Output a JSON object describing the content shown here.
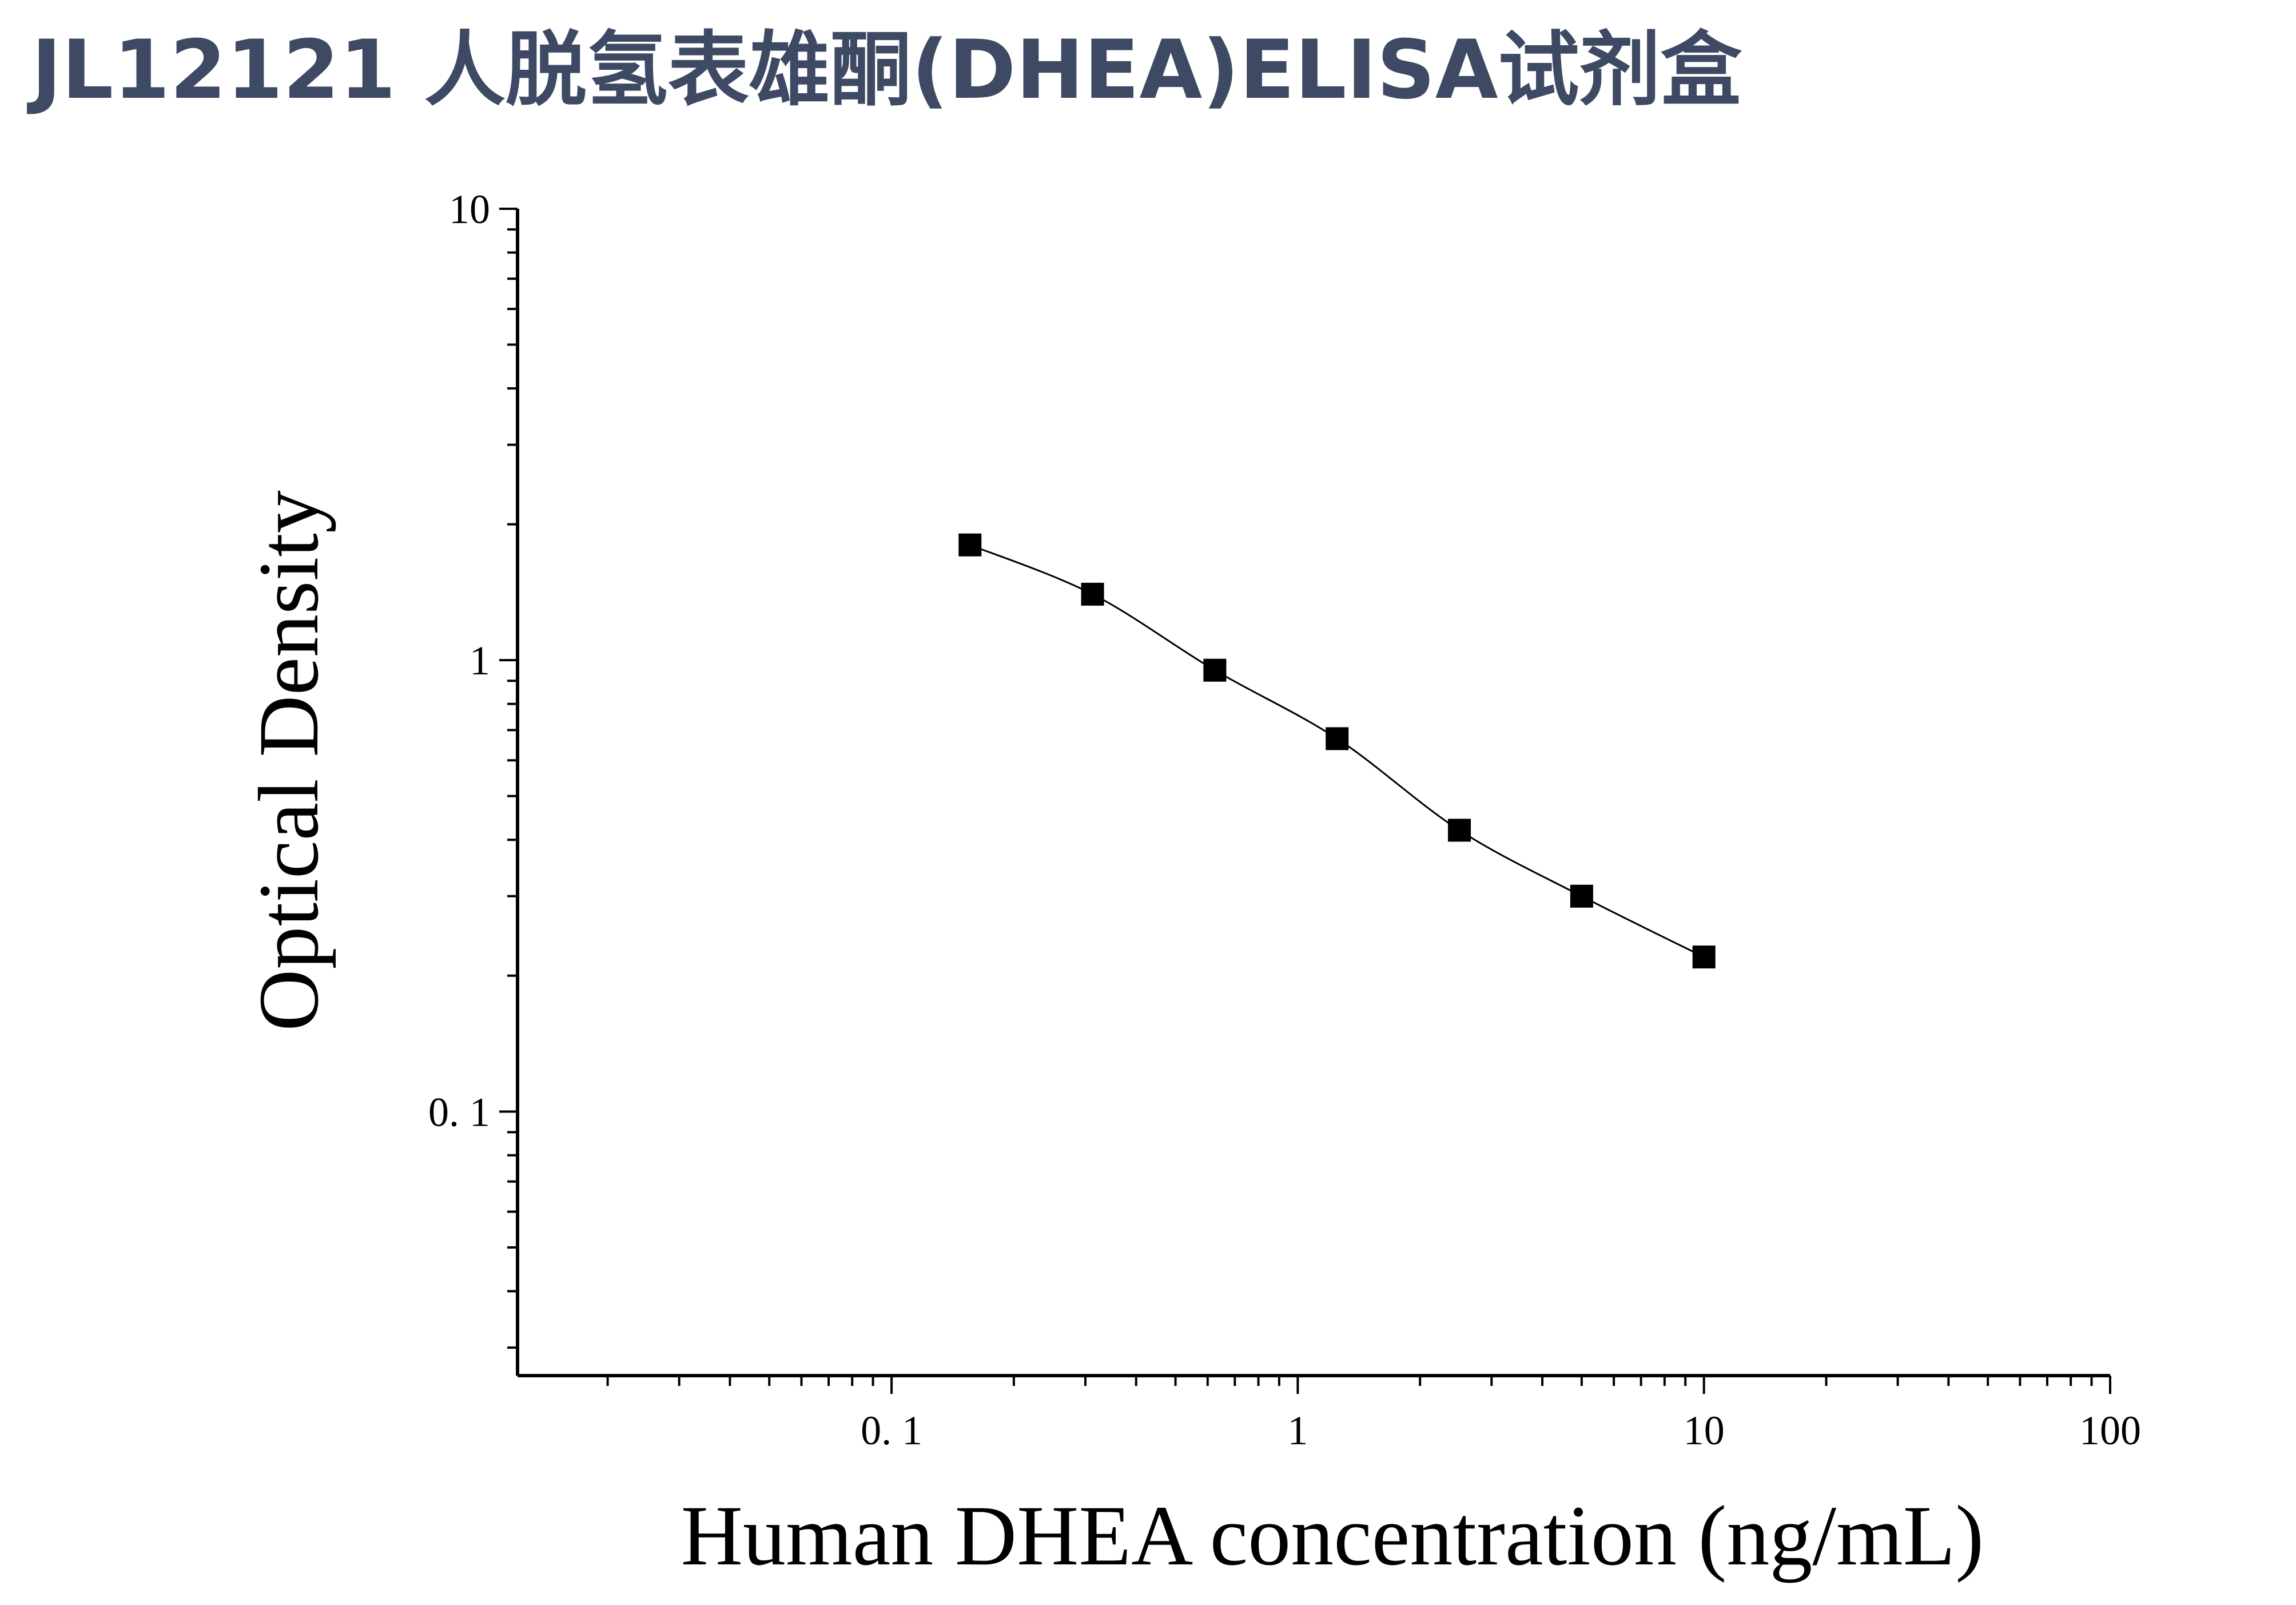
{
  "header": {
    "title": "JL12121 人脱氢表雄酮(DHEA)ELISA试剂盒"
  },
  "chart_data": {
    "type": "scatter",
    "xscale": "log",
    "yscale": "log",
    "xlabel": "Human DHEA concentration (ng/mL)",
    "ylabel": "Optical Density",
    "xlim": [
      0.012,
      100
    ],
    "ylim": [
      0.026,
      10
    ],
    "x_ticks": [
      {
        "value": 0.1,
        "label": "0. 1"
      },
      {
        "value": 1,
        "label": "1"
      },
      {
        "value": 10,
        "label": "10"
      },
      {
        "value": 100,
        "label": "100"
      }
    ],
    "y_ticks": [
      {
        "value": 0.1,
        "label": "0. 1"
      },
      {
        "value": 1,
        "label": "1"
      },
      {
        "value": 10,
        "label": "10"
      }
    ],
    "series": [
      {
        "x": [
          0.156,
          0.3125,
          0.625,
          1.25,
          2.5,
          5,
          10
        ],
        "y": [
          1.8,
          1.4,
          0.95,
          0.67,
          0.42,
          0.3,
          0.22
        ],
        "marker": "square",
        "color": "#000000",
        "fit_curve": true
      }
    ],
    "grid": false
  }
}
